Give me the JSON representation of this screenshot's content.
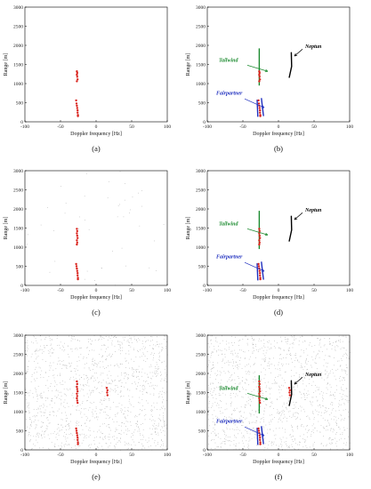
{
  "figure": {
    "axes": {
      "xlabel": "Doppler frequency [Hz]",
      "ylabel": "Range [m]",
      "xlim": [
        -100,
        100
      ],
      "ylim": [
        0,
        3000
      ],
      "xticks": [
        "-100",
        "-50",
        "0",
        "50",
        "100"
      ],
      "yticks": [
        "0",
        "500",
        "1000",
        "1500",
        "2000",
        "2500",
        "3000"
      ],
      "grid": false
    },
    "colors": {
      "detections": "#d9221c",
      "tailwind": "#1a8a2e",
      "fairpartner": "#1f2fbf",
      "neptun": "#000000",
      "clutter": "#9a9a9a"
    }
  },
  "chart_data": [
    {
      "type": "scatter",
      "panel_label": "(a)",
      "series": [
        {
          "kind": "detections",
          "points": [
            [
              -27,
              1320
            ],
            [
              -26.5,
              1280
            ],
            [
              -27,
              1230
            ],
            [
              -26.5,
              1180
            ],
            [
              -26,
              1110
            ],
            [
              -27,
              1060
            ],
            [
              -28,
              560
            ],
            [
              -27.5,
              480
            ],
            [
              -27,
              420
            ],
            [
              -26.5,
              360
            ],
            [
              -26,
              300
            ],
            [
              -26,
              240
            ],
            [
              -25.5,
              180
            ],
            [
              -25.5,
              150
            ]
          ]
        }
      ]
    },
    {
      "type": "scatter",
      "panel_label": "(b)",
      "annotations": [
        "Tailwind",
        "Fairpartner",
        "Neptun"
      ],
      "series": [
        {
          "kind": "detections",
          "points": [
            [
              -27,
              1320
            ],
            [
              -26.5,
              1280
            ],
            [
              -27,
              1230
            ],
            [
              -26.5,
              1180
            ],
            [
              -26,
              1110
            ],
            [
              -27,
              1060
            ],
            [
              -28,
              560
            ],
            [
              -27.5,
              480
            ],
            [
              -27,
              420
            ],
            [
              -26.5,
              360
            ],
            [
              -26,
              300
            ],
            [
              -26,
              240
            ],
            [
              -25.5,
              180
            ],
            [
              -25.5,
              150
            ]
          ]
        },
        {
          "kind": "track",
          "name": "Tailwind",
          "color": "#1a8a2e",
          "points": [
            [
              -27,
              1920
            ],
            [
              -27,
              1400
            ],
            [
              -27,
              950
            ]
          ]
        },
        {
          "kind": "track",
          "name": "Fairpartner",
          "color": "#1f2fbf",
          "points": [
            [
              -30,
              580
            ],
            [
              -29.5,
              350
            ],
            [
              -29,
              130
            ]
          ]
        },
        {
          "kind": "track",
          "name": "Fairpartner",
          "color": "#1f2fbf",
          "points": [
            [
              -24,
              620
            ],
            [
              -22.5,
              380
            ],
            [
              -21,
              150
            ]
          ]
        },
        {
          "kind": "track",
          "name": "Neptun",
          "color": "#000000",
          "points": [
            [
              18,
              1820
            ],
            [
              18.5,
              1450
            ],
            [
              15,
              1150
            ]
          ]
        }
      ]
    },
    {
      "type": "scatter",
      "panel_label": "(c)",
      "series": [
        {
          "kind": "detections",
          "points": [
            [
              -27,
              1480
            ],
            [
              -26.5,
              1420
            ],
            [
              -27,
              1360
            ],
            [
              -26.5,
              1300
            ],
            [
              -26,
              1240
            ],
            [
              -27,
              1180
            ],
            [
              -26.5,
              1120
            ],
            [
              -27,
              1070
            ],
            [
              -28,
              560
            ],
            [
              -27.5,
              500
            ],
            [
              -27,
              440
            ],
            [
              -26.5,
              380
            ],
            [
              -26,
              320
            ],
            [
              -26,
              260
            ],
            [
              -25.5,
              200
            ],
            [
              -25.5,
              160
            ]
          ]
        }
      ]
    },
    {
      "type": "scatter",
      "panel_label": "(d)",
      "annotations": [
        "Tailwind",
        "Fairpartner",
        "Neptun"
      ],
      "series": [
        {
          "kind": "detections",
          "points": [
            [
              -27,
              1480
            ],
            [
              -26.5,
              1420
            ],
            [
              -27,
              1360
            ],
            [
              -26.5,
              1300
            ],
            [
              -26,
              1240
            ],
            [
              -27,
              1180
            ],
            [
              -26.5,
              1120
            ],
            [
              -27,
              1070
            ],
            [
              -28,
              560
            ],
            [
              -27.5,
              500
            ],
            [
              -27,
              440
            ],
            [
              -26.5,
              380
            ],
            [
              -26,
              320
            ],
            [
              -26,
              260
            ],
            [
              -25.5,
              200
            ],
            [
              -25.5,
              160
            ]
          ]
        },
        {
          "kind": "track",
          "name": "Tailwind",
          "color": "#1a8a2e",
          "points": [
            [
              -27,
              1950
            ],
            [
              -27,
              1400
            ],
            [
              -27,
              950
            ]
          ]
        },
        {
          "kind": "track",
          "name": "Fairpartner",
          "color": "#1f2fbf",
          "points": [
            [
              -30,
              580
            ],
            [
              -29.5,
              350
            ],
            [
              -29,
              130
            ]
          ]
        },
        {
          "kind": "track",
          "name": "Fairpartner",
          "color": "#1f2fbf",
          "points": [
            [
              -24,
              620
            ],
            [
              -22.5,
              380
            ],
            [
              -21,
              150
            ]
          ]
        },
        {
          "kind": "track",
          "name": "Neptun",
          "color": "#000000",
          "points": [
            [
              18,
              1820
            ],
            [
              18.5,
              1450
            ],
            [
              15,
              1150
            ]
          ]
        }
      ]
    },
    {
      "type": "scatter",
      "panel_label": "(e)",
      "series": [
        {
          "kind": "detections",
          "points": [
            [
              -27,
              1790
            ],
            [
              -26.5,
              1720
            ],
            [
              -27,
              1650
            ],
            [
              -26.5,
              1590
            ],
            [
              -26,
              1530
            ],
            [
              -27,
              1470
            ],
            [
              -26.5,
              1410
            ],
            [
              -27,
              1350
            ],
            [
              -26.5,
              1290
            ],
            [
              -26,
              1230
            ],
            [
              -28,
              560
            ],
            [
              -27.5,
              500
            ],
            [
              -27,
              440
            ],
            [
              -26.5,
              380
            ],
            [
              -26,
              320
            ],
            [
              -26,
              260
            ],
            [
              -25.5,
              200
            ],
            [
              -25.5,
              150
            ],
            [
              15,
              1620
            ],
            [
              16,
              1560
            ],
            [
              15.5,
              1500
            ],
            [
              16,
              1430
            ]
          ]
        }
      ]
    },
    {
      "type": "scatter",
      "panel_label": "(f)",
      "annotations": [
        "Tailwind",
        "Fairpartner",
        "Neptun"
      ],
      "series": [
        {
          "kind": "detections",
          "points": [
            [
              -27,
              1790
            ],
            [
              -26.5,
              1720
            ],
            [
              -27,
              1650
            ],
            [
              -26.5,
              1590
            ],
            [
              -26,
              1530
            ],
            [
              -27,
              1470
            ],
            [
              -26.5,
              1410
            ],
            [
              -27,
              1350
            ],
            [
              -26.5,
              1290
            ],
            [
              -26,
              1230
            ],
            [
              -28,
              560
            ],
            [
              -27.5,
              500
            ],
            [
              -27,
              440
            ],
            [
              -26.5,
              380
            ],
            [
              -26,
              320
            ],
            [
              -26,
              260
            ],
            [
              -25.5,
              200
            ],
            [
              -25.5,
              150
            ],
            [
              15,
              1620
            ],
            [
              16,
              1560
            ],
            [
              15.5,
              1500
            ],
            [
              16,
              1430
            ]
          ]
        },
        {
          "kind": "track",
          "name": "Tailwind",
          "color": "#1a8a2e",
          "points": [
            [
              -27,
              1950
            ],
            [
              -27,
              1400
            ],
            [
              -27,
              950
            ]
          ]
        },
        {
          "kind": "track",
          "name": "Fairpartner",
          "color": "#1f2fbf",
          "points": [
            [
              -30,
              580
            ],
            [
              -29.5,
              350
            ],
            [
              -29,
              130
            ]
          ]
        },
        {
          "kind": "track",
          "name": "Fairpartner",
          "color": "#1f2fbf",
          "points": [
            [
              -24,
              620
            ],
            [
              -22.5,
              380
            ],
            [
              -21,
              150
            ]
          ]
        },
        {
          "kind": "track",
          "name": "Neptun",
          "color": "#000000",
          "points": [
            [
              18,
              1820
            ],
            [
              18.5,
              1450
            ],
            [
              15,
              1150
            ]
          ]
        }
      ]
    }
  ]
}
